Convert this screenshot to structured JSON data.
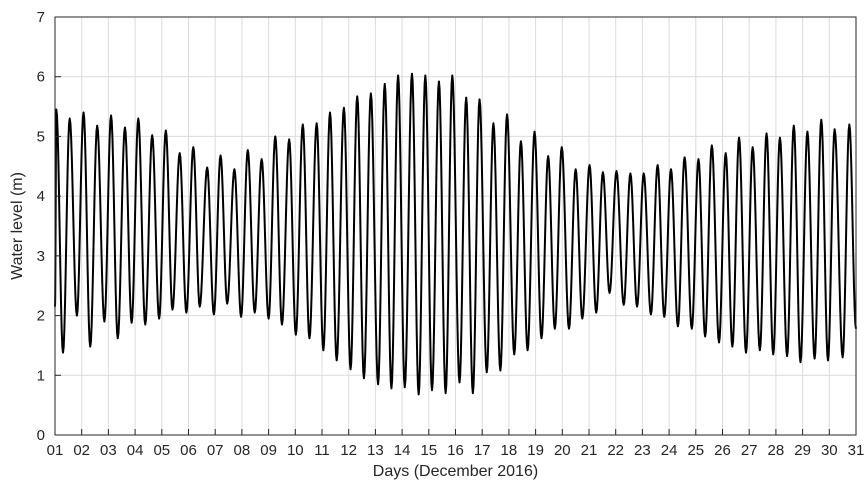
{
  "chart_data": {
    "type": "line",
    "title": "",
    "xlabel": "Days (December 2016)",
    "ylabel": "Water level (m)",
    "xlim": [
      1,
      31
    ],
    "ylim": [
      0,
      7
    ],
    "grid": true,
    "legend": "none",
    "xticks": [
      "01",
      "02",
      "03",
      "04",
      "05",
      "06",
      "07",
      "08",
      "09",
      "10",
      "11",
      "12",
      "13",
      "14",
      "15",
      "16",
      "17",
      "18",
      "19",
      "20",
      "21",
      "22",
      "23",
      "24",
      "25",
      "26",
      "27",
      "28",
      "29",
      "30",
      "31"
    ],
    "yticks": [
      "0",
      "1",
      "2",
      "3",
      "4",
      "5",
      "6",
      "7"
    ],
    "line_color": "#000000",
    "grid_color": "#dcdcdc",
    "tidal_period_hours": 12.42,
    "series": [
      {
        "high_water": [
          [
            1.05,
            5.45
          ],
          [
            1.55,
            5.3
          ],
          [
            2.07,
            5.4
          ],
          [
            2.58,
            5.18
          ],
          [
            3.1,
            5.35
          ],
          [
            3.62,
            5.15
          ],
          [
            4.12,
            5.3
          ],
          [
            4.64,
            5.02
          ],
          [
            5.15,
            5.1
          ],
          [
            5.67,
            4.72
          ],
          [
            6.18,
            4.82
          ],
          [
            6.7,
            4.48
          ],
          [
            7.2,
            4.68
          ],
          [
            7.72,
            4.45
          ],
          [
            8.22,
            4.77
          ],
          [
            8.74,
            4.62
          ],
          [
            9.25,
            5.0
          ],
          [
            9.77,
            4.95
          ],
          [
            10.28,
            5.2
          ],
          [
            10.8,
            5.22
          ],
          [
            11.3,
            5.4
          ],
          [
            11.82,
            5.48
          ],
          [
            12.32,
            5.67
          ],
          [
            12.83,
            5.72
          ],
          [
            13.35,
            5.88
          ],
          [
            13.85,
            6.02
          ],
          [
            14.37,
            6.05
          ],
          [
            14.87,
            6.02
          ],
          [
            15.38,
            5.92
          ],
          [
            15.88,
            6.02
          ],
          [
            16.4,
            5.65
          ],
          [
            16.9,
            5.62
          ],
          [
            17.42,
            5.22
          ],
          [
            17.93,
            5.37
          ],
          [
            18.45,
            4.92
          ],
          [
            18.96,
            5.08
          ],
          [
            19.47,
            4.67
          ],
          [
            19.98,
            4.82
          ],
          [
            20.5,
            4.45
          ],
          [
            21.02,
            4.52
          ],
          [
            21.52,
            4.4
          ],
          [
            22.03,
            4.42
          ],
          [
            22.55,
            4.38
          ],
          [
            23.05,
            4.38
          ],
          [
            23.57,
            4.52
          ],
          [
            24.07,
            4.45
          ],
          [
            24.58,
            4.65
          ],
          [
            25.1,
            4.62
          ],
          [
            25.6,
            4.85
          ],
          [
            26.12,
            4.72
          ],
          [
            26.62,
            4.98
          ],
          [
            27.13,
            4.82
          ],
          [
            27.65,
            5.05
          ],
          [
            28.15,
            4.98
          ],
          [
            28.67,
            5.18
          ],
          [
            29.18,
            5.08
          ],
          [
            29.7,
            5.28
          ],
          [
            30.2,
            5.12
          ],
          [
            30.75,
            5.2
          ]
        ],
        "low_water": [
          [
            1.0,
            2.15
          ],
          [
            1.3,
            1.38
          ],
          [
            1.82,
            2.0
          ],
          [
            2.32,
            1.48
          ],
          [
            2.85,
            1.9
          ],
          [
            3.35,
            1.62
          ],
          [
            3.87,
            1.88
          ],
          [
            4.38,
            1.85
          ],
          [
            4.9,
            1.95
          ],
          [
            5.4,
            2.1
          ],
          [
            5.92,
            2.05
          ],
          [
            6.42,
            2.15
          ],
          [
            6.95,
            2.02
          ],
          [
            7.45,
            2.2
          ],
          [
            7.97,
            1.98
          ],
          [
            8.48,
            2.05
          ],
          [
            9.0,
            1.95
          ],
          [
            9.5,
            1.85
          ],
          [
            10.02,
            1.68
          ],
          [
            10.53,
            1.62
          ],
          [
            11.05,
            1.42
          ],
          [
            11.55,
            1.25
          ],
          [
            12.07,
            1.1
          ],
          [
            12.57,
            0.95
          ],
          [
            13.1,
            0.85
          ],
          [
            13.6,
            0.78
          ],
          [
            14.1,
            0.8
          ],
          [
            14.62,
            0.68
          ],
          [
            15.12,
            0.75
          ],
          [
            15.63,
            0.7
          ],
          [
            16.15,
            0.88
          ],
          [
            16.65,
            0.7
          ],
          [
            17.17,
            1.05
          ],
          [
            17.68,
            1.08
          ],
          [
            18.2,
            1.35
          ],
          [
            18.7,
            1.42
          ],
          [
            19.22,
            1.62
          ],
          [
            19.72,
            1.78
          ],
          [
            20.25,
            1.78
          ],
          [
            20.75,
            1.95
          ],
          [
            21.27,
            2.05
          ],
          [
            21.77,
            2.38
          ],
          [
            22.3,
            2.18
          ],
          [
            22.8,
            2.15
          ],
          [
            23.32,
            2.02
          ],
          [
            23.82,
            1.98
          ],
          [
            24.33,
            1.82
          ],
          [
            24.85,
            1.78
          ],
          [
            25.35,
            1.65
          ],
          [
            25.87,
            1.55
          ],
          [
            26.37,
            1.48
          ],
          [
            26.88,
            1.38
          ],
          [
            27.4,
            1.42
          ],
          [
            27.9,
            1.35
          ],
          [
            28.42,
            1.32
          ],
          [
            28.92,
            1.22
          ],
          [
            29.45,
            1.28
          ],
          [
            29.95,
            1.25
          ],
          [
            30.5,
            1.3
          ],
          [
            31.0,
            1.78
          ]
        ]
      }
    ]
  }
}
